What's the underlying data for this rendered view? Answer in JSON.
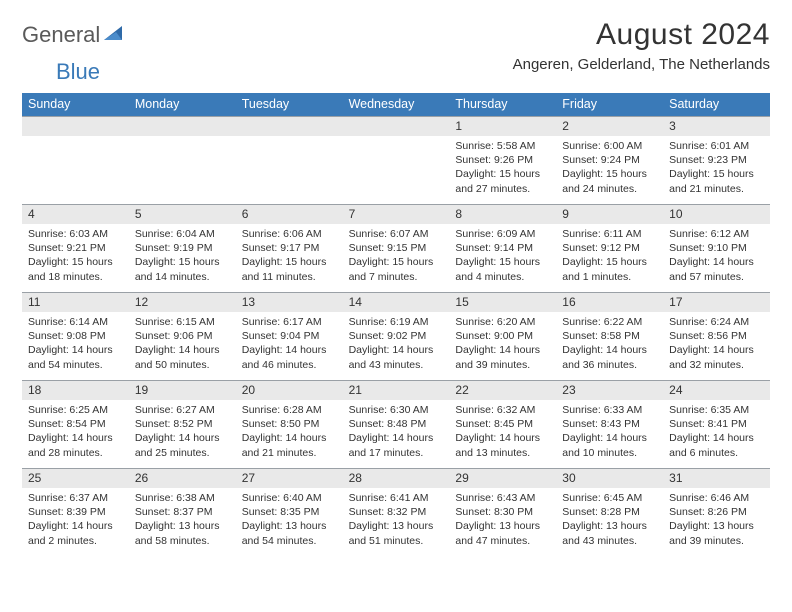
{
  "logo": {
    "textA": "General",
    "textB": "Blue"
  },
  "title": "August 2024",
  "location": "Angeren, Gelderland, The Netherlands",
  "weekdays": [
    "Sunday",
    "Monday",
    "Tuesday",
    "Wednesday",
    "Thursday",
    "Friday",
    "Saturday"
  ],
  "colors": {
    "header_bg": "#3a7ab8",
    "num_bg": "#e9e9e9",
    "text": "#333333",
    "logo_gray": "#5a5a5a",
    "logo_blue": "#3a7ab8"
  },
  "weeks": [
    {
      "nums": [
        "",
        "",
        "",
        "",
        "1",
        "2",
        "3"
      ],
      "cells": [
        {},
        {},
        {},
        {},
        {
          "sunrise": "Sunrise: 5:58 AM",
          "sunset": "Sunset: 9:26 PM",
          "day1": "Daylight: 15 hours",
          "day2": "and 27 minutes."
        },
        {
          "sunrise": "Sunrise: 6:00 AM",
          "sunset": "Sunset: 9:24 PM",
          "day1": "Daylight: 15 hours",
          "day2": "and 24 minutes."
        },
        {
          "sunrise": "Sunrise: 6:01 AM",
          "sunset": "Sunset: 9:23 PM",
          "day1": "Daylight: 15 hours",
          "day2": "and 21 minutes."
        }
      ]
    },
    {
      "nums": [
        "4",
        "5",
        "6",
        "7",
        "8",
        "9",
        "10"
      ],
      "cells": [
        {
          "sunrise": "Sunrise: 6:03 AM",
          "sunset": "Sunset: 9:21 PM",
          "day1": "Daylight: 15 hours",
          "day2": "and 18 minutes."
        },
        {
          "sunrise": "Sunrise: 6:04 AM",
          "sunset": "Sunset: 9:19 PM",
          "day1": "Daylight: 15 hours",
          "day2": "and 14 minutes."
        },
        {
          "sunrise": "Sunrise: 6:06 AM",
          "sunset": "Sunset: 9:17 PM",
          "day1": "Daylight: 15 hours",
          "day2": "and 11 minutes."
        },
        {
          "sunrise": "Sunrise: 6:07 AM",
          "sunset": "Sunset: 9:15 PM",
          "day1": "Daylight: 15 hours",
          "day2": "and 7 minutes."
        },
        {
          "sunrise": "Sunrise: 6:09 AM",
          "sunset": "Sunset: 9:14 PM",
          "day1": "Daylight: 15 hours",
          "day2": "and 4 minutes."
        },
        {
          "sunrise": "Sunrise: 6:11 AM",
          "sunset": "Sunset: 9:12 PM",
          "day1": "Daylight: 15 hours",
          "day2": "and 1 minutes."
        },
        {
          "sunrise": "Sunrise: 6:12 AM",
          "sunset": "Sunset: 9:10 PM",
          "day1": "Daylight: 14 hours",
          "day2": "and 57 minutes."
        }
      ]
    },
    {
      "nums": [
        "11",
        "12",
        "13",
        "14",
        "15",
        "16",
        "17"
      ],
      "cells": [
        {
          "sunrise": "Sunrise: 6:14 AM",
          "sunset": "Sunset: 9:08 PM",
          "day1": "Daylight: 14 hours",
          "day2": "and 54 minutes."
        },
        {
          "sunrise": "Sunrise: 6:15 AM",
          "sunset": "Sunset: 9:06 PM",
          "day1": "Daylight: 14 hours",
          "day2": "and 50 minutes."
        },
        {
          "sunrise": "Sunrise: 6:17 AM",
          "sunset": "Sunset: 9:04 PM",
          "day1": "Daylight: 14 hours",
          "day2": "and 46 minutes."
        },
        {
          "sunrise": "Sunrise: 6:19 AM",
          "sunset": "Sunset: 9:02 PM",
          "day1": "Daylight: 14 hours",
          "day2": "and 43 minutes."
        },
        {
          "sunrise": "Sunrise: 6:20 AM",
          "sunset": "Sunset: 9:00 PM",
          "day1": "Daylight: 14 hours",
          "day2": "and 39 minutes."
        },
        {
          "sunrise": "Sunrise: 6:22 AM",
          "sunset": "Sunset: 8:58 PM",
          "day1": "Daylight: 14 hours",
          "day2": "and 36 minutes."
        },
        {
          "sunrise": "Sunrise: 6:24 AM",
          "sunset": "Sunset: 8:56 PM",
          "day1": "Daylight: 14 hours",
          "day2": "and 32 minutes."
        }
      ]
    },
    {
      "nums": [
        "18",
        "19",
        "20",
        "21",
        "22",
        "23",
        "24"
      ],
      "cells": [
        {
          "sunrise": "Sunrise: 6:25 AM",
          "sunset": "Sunset: 8:54 PM",
          "day1": "Daylight: 14 hours",
          "day2": "and 28 minutes."
        },
        {
          "sunrise": "Sunrise: 6:27 AM",
          "sunset": "Sunset: 8:52 PM",
          "day1": "Daylight: 14 hours",
          "day2": "and 25 minutes."
        },
        {
          "sunrise": "Sunrise: 6:28 AM",
          "sunset": "Sunset: 8:50 PM",
          "day1": "Daylight: 14 hours",
          "day2": "and 21 minutes."
        },
        {
          "sunrise": "Sunrise: 6:30 AM",
          "sunset": "Sunset: 8:48 PM",
          "day1": "Daylight: 14 hours",
          "day2": "and 17 minutes."
        },
        {
          "sunrise": "Sunrise: 6:32 AM",
          "sunset": "Sunset: 8:45 PM",
          "day1": "Daylight: 14 hours",
          "day2": "and 13 minutes."
        },
        {
          "sunrise": "Sunrise: 6:33 AM",
          "sunset": "Sunset: 8:43 PM",
          "day1": "Daylight: 14 hours",
          "day2": "and 10 minutes."
        },
        {
          "sunrise": "Sunrise: 6:35 AM",
          "sunset": "Sunset: 8:41 PM",
          "day1": "Daylight: 14 hours",
          "day2": "and 6 minutes."
        }
      ]
    },
    {
      "nums": [
        "25",
        "26",
        "27",
        "28",
        "29",
        "30",
        "31"
      ],
      "cells": [
        {
          "sunrise": "Sunrise: 6:37 AM",
          "sunset": "Sunset: 8:39 PM",
          "day1": "Daylight: 14 hours",
          "day2": "and 2 minutes."
        },
        {
          "sunrise": "Sunrise: 6:38 AM",
          "sunset": "Sunset: 8:37 PM",
          "day1": "Daylight: 13 hours",
          "day2": "and 58 minutes."
        },
        {
          "sunrise": "Sunrise: 6:40 AM",
          "sunset": "Sunset: 8:35 PM",
          "day1": "Daylight: 13 hours",
          "day2": "and 54 minutes."
        },
        {
          "sunrise": "Sunrise: 6:41 AM",
          "sunset": "Sunset: 8:32 PM",
          "day1": "Daylight: 13 hours",
          "day2": "and 51 minutes."
        },
        {
          "sunrise": "Sunrise: 6:43 AM",
          "sunset": "Sunset: 8:30 PM",
          "day1": "Daylight: 13 hours",
          "day2": "and 47 minutes."
        },
        {
          "sunrise": "Sunrise: 6:45 AM",
          "sunset": "Sunset: 8:28 PM",
          "day1": "Daylight: 13 hours",
          "day2": "and 43 minutes."
        },
        {
          "sunrise": "Sunrise: 6:46 AM",
          "sunset": "Sunset: 8:26 PM",
          "day1": "Daylight: 13 hours",
          "day2": "and 39 minutes."
        }
      ]
    }
  ]
}
